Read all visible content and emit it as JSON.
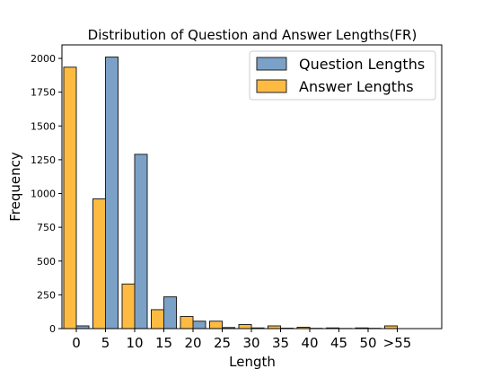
{
  "chart_data": {
    "type": "bar",
    "title": "Distribution of Question and Answer Lengths(FR)",
    "xlabel": "Length",
    "ylabel": "Frequency",
    "categories": [
      "0",
      "5",
      "10",
      "15",
      "20",
      "25",
      "30",
      "35",
      "40",
      "45",
      "50",
      ">55"
    ],
    "ylim": [
      0,
      2100
    ],
    "yticks": [
      0,
      250,
      500,
      750,
      1000,
      1250,
      1500,
      1750,
      2000
    ],
    "grid": false,
    "legend_position": "top-right",
    "series": [
      {
        "name": "Question Lengths",
        "color": "#4f81b3",
        "values": [
          20,
          2010,
          1290,
          235,
          55,
          8,
          5,
          3,
          2,
          1,
          2,
          0
        ]
      },
      {
        "name": "Answer Lengths",
        "color": "#fdb42e",
        "values": [
          1935,
          960,
          330,
          140,
          90,
          55,
          30,
          20,
          10,
          5,
          5,
          20
        ]
      }
    ]
  }
}
